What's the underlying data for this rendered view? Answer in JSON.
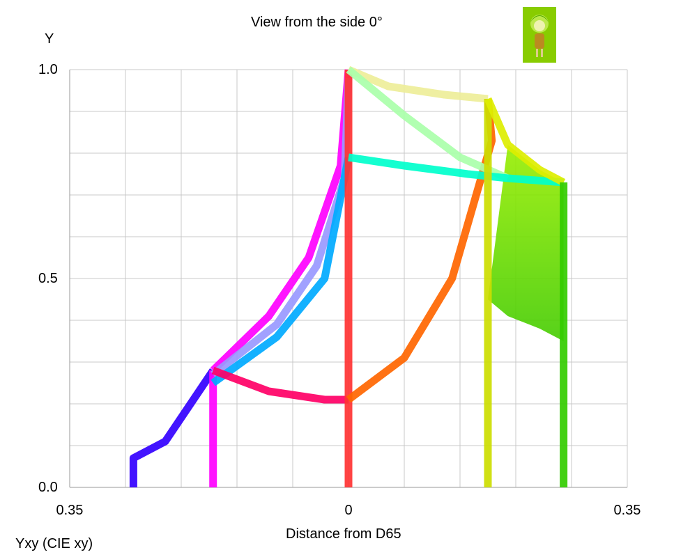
{
  "chart_data": {
    "type": "line",
    "title": "View from the side 0°",
    "ylabel": "Y",
    "xlabel": "Distance from D65",
    "footer": "Yxy (CIE xy)",
    "ylim": [
      0,
      1
    ],
    "xlim": [
      -0.35,
      0.35
    ],
    "y_tick_labels": [
      "1.0",
      "0.5",
      "0.0"
    ],
    "y_tick_values": [
      1.0,
      0.5,
      0.0
    ],
    "x_tick_labels": [
      "0.35",
      "0",
      "0.35"
    ],
    "x_tick_values": [
      -0.35,
      0,
      0.35
    ],
    "grid": true,
    "series": [
      {
        "color": "#3300ff",
        "x": [
          -0.27,
          -0.27,
          -0.23,
          -0.17
        ],
        "y": [
          0.0,
          0.07,
          0.11,
          0.28
        ]
      },
      {
        "color": "#ff00ff",
        "x": [
          -0.17,
          -0.17
        ],
        "y": [
          0.0,
          0.28
        ]
      },
      {
        "color": "#ff00ff",
        "x": [
          -0.17,
          -0.1,
          -0.05,
          -0.01,
          0.0
        ],
        "y": [
          0.28,
          0.41,
          0.55,
          0.77,
          1.0
        ]
      },
      {
        "color": "#9999ff",
        "x": [
          -0.17,
          -0.09,
          -0.04,
          -0.005,
          0.0
        ],
        "y": [
          0.27,
          0.39,
          0.53,
          0.74,
          0.98
        ]
      },
      {
        "color": "#00aaff",
        "x": [
          -0.17,
          -0.09,
          -0.03,
          0.0
        ],
        "y": [
          0.25,
          0.36,
          0.5,
          0.79
        ]
      },
      {
        "color": "#ff0066",
        "x": [
          -0.17,
          -0.1,
          -0.03,
          0.0
        ],
        "y": [
          0.28,
          0.23,
          0.21,
          0.21
        ]
      },
      {
        "color": "#ff3333",
        "x": [
          0.0,
          0.0
        ],
        "y": [
          0.0,
          1.0
        ]
      },
      {
        "color": "#ff6600",
        "x": [
          0.0,
          0.07,
          0.13,
          0.18,
          0.175
        ],
        "y": [
          0.21,
          0.31,
          0.5,
          0.83,
          0.93
        ]
      },
      {
        "color": "#eeee99",
        "x": [
          0.0,
          0.05,
          0.12,
          0.175
        ],
        "y": [
          1.0,
          0.96,
          0.94,
          0.93
        ]
      },
      {
        "color": "#aaffaa",
        "x": [
          0.0,
          0.07,
          0.14,
          0.2
        ],
        "y": [
          1.0,
          0.89,
          0.79,
          0.74
        ]
      },
      {
        "color": "#00ffcc",
        "x": [
          0.0,
          0.07,
          0.15,
          0.2,
          0.27
        ],
        "y": [
          0.79,
          0.77,
          0.75,
          0.74,
          0.73
        ]
      },
      {
        "color": "#ccdd00",
        "x": [
          0.175,
          0.175
        ],
        "y": [
          0.0,
          0.93
        ]
      },
      {
        "color": "#ddee00",
        "x": [
          0.175,
          0.2,
          0.24,
          0.27
        ],
        "y": [
          0.93,
          0.82,
          0.76,
          0.73
        ]
      },
      {
        "color": "#33cc00",
        "x": [
          0.27,
          0.27
        ],
        "y": [
          0.0,
          0.73
        ]
      }
    ],
    "surface": {
      "color_top": "#99ee00",
      "color_bottom": "#44cc00",
      "top_edge": {
        "x": [
          0.2,
          0.24,
          0.27
        ],
        "y": [
          0.82,
          0.76,
          0.73
        ]
      },
      "bottom_edge": {
        "x": [
          0.175,
          0.2,
          0.24,
          0.27
        ],
        "y": [
          0.45,
          0.41,
          0.38,
          0.35
        ]
      }
    }
  },
  "colors": {
    "grid": "#c8c8c8",
    "axis": "#999999",
    "thumbnail_bg": "#88cc00"
  },
  "icons": {
    "thumbnail": "character-thumbnail-icon"
  }
}
